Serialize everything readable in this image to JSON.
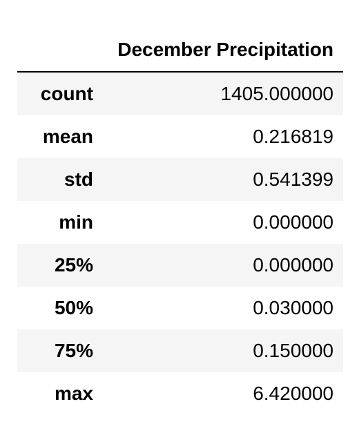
{
  "table": {
    "columns": [
      "December Precipitation"
    ],
    "rows": [
      {
        "index": "count",
        "value": "1405.000000"
      },
      {
        "index": "mean",
        "value": "0.216819"
      },
      {
        "index": "std",
        "value": "0.541399"
      },
      {
        "index": "min",
        "value": "0.000000"
      },
      {
        "index": "25%",
        "value": "0.000000"
      },
      {
        "index": "50%",
        "value": "0.030000"
      },
      {
        "index": "75%",
        "value": "0.150000"
      },
      {
        "index": "max",
        "value": "6.420000"
      }
    ]
  },
  "colors": {
    "row_stripe": "#f5f5f5",
    "row_plain": "#ffffff",
    "header_rule": "#000000"
  }
}
